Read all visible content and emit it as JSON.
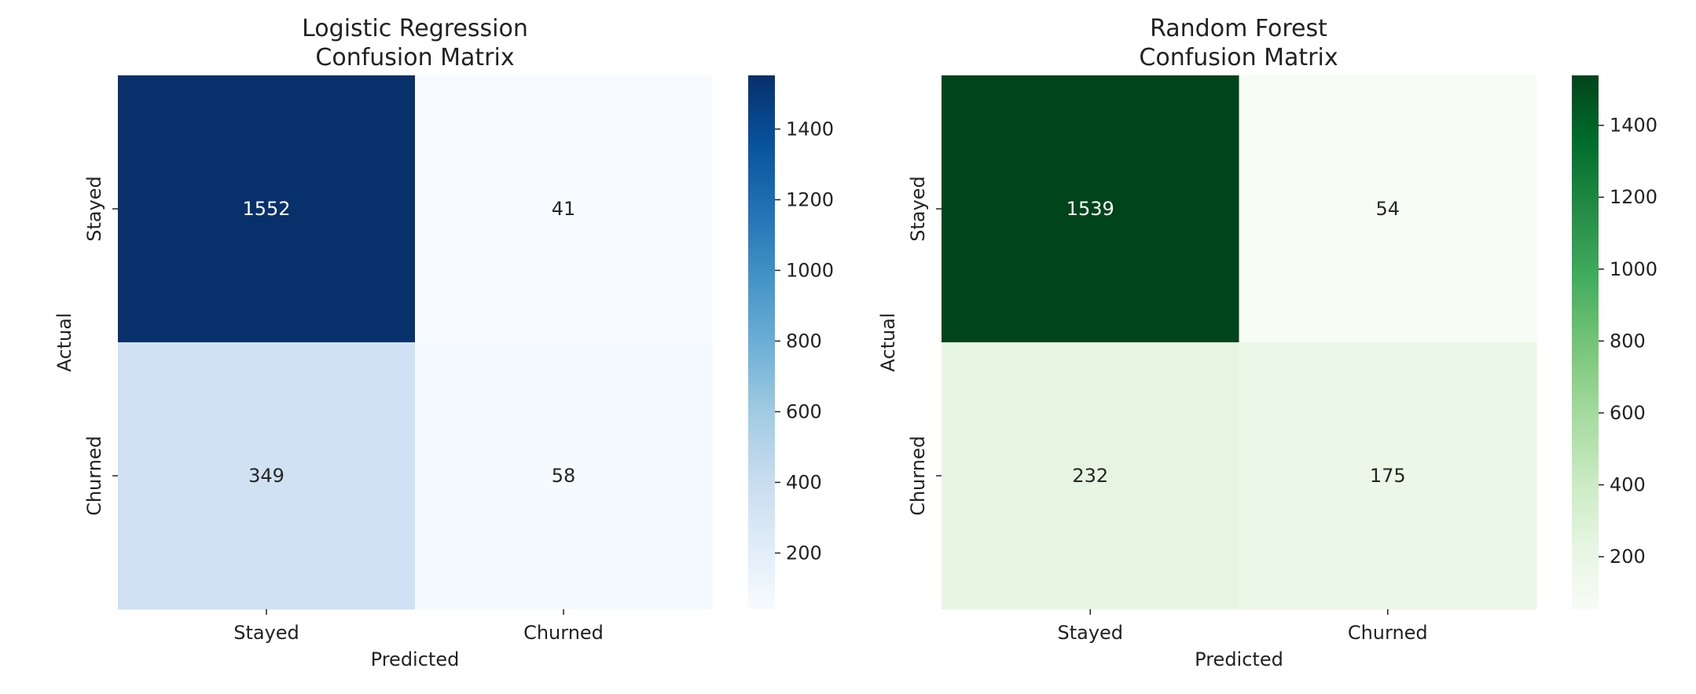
{
  "chart_data": [
    {
      "type": "heatmap",
      "title": [
        "Logistic Regression",
        "Confusion Matrix"
      ],
      "xlabel": "Predicted",
      "ylabel": "Actual",
      "x_categories": [
        "Stayed",
        "Churned"
      ],
      "y_categories": [
        "Stayed",
        "Churned"
      ],
      "values": [
        [
          1552,
          41
        ],
        [
          349,
          58
        ]
      ],
      "colormap": "Blues",
      "colorbar": {
        "min": 41,
        "max": 1552,
        "ticks": [
          200,
          400,
          600,
          800,
          1000,
          1200,
          1400
        ]
      }
    },
    {
      "type": "heatmap",
      "title": [
        "Random Forest",
        "Confusion Matrix"
      ],
      "xlabel": "Predicted",
      "ylabel": "Actual",
      "x_categories": [
        "Stayed",
        "Churned"
      ],
      "y_categories": [
        "Stayed",
        "Churned"
      ],
      "values": [
        [
          1539,
          54
        ],
        [
          232,
          175
        ]
      ],
      "colormap": "Greens",
      "colorbar": {
        "min": 54,
        "max": 1539,
        "ticks": [
          200,
          400,
          600,
          800,
          1000,
          1200,
          1400
        ]
      }
    }
  ],
  "colormaps": {
    "Blues": [
      "#f7fbff",
      "#deebf7",
      "#c6dbef",
      "#9ecae1",
      "#6baed6",
      "#4292c6",
      "#2171b5",
      "#08519c",
      "#08306b"
    ],
    "Greens": [
      "#f7fcf5",
      "#e5f5e0",
      "#c7e9c0",
      "#a1d99b",
      "#74c476",
      "#41ab5d",
      "#238b45",
      "#006d2c",
      "#00441b"
    ]
  }
}
